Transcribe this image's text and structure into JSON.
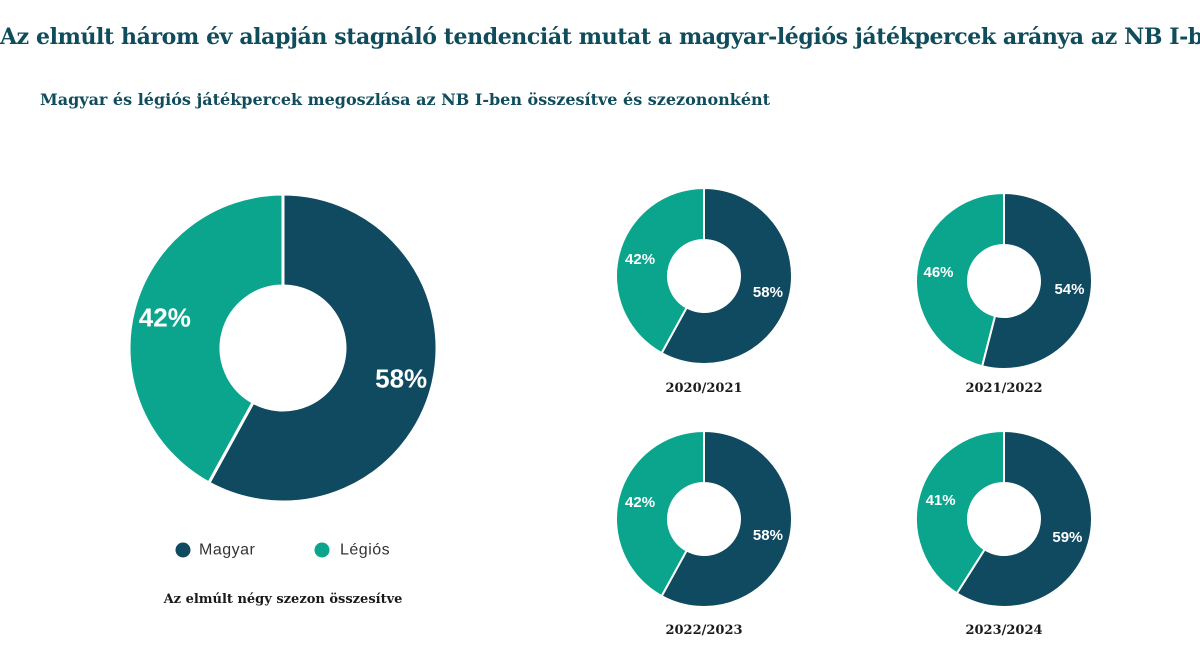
{
  "title": "Az elmúlt három év alapján stagnáló tendenciát mutat a magyar-légiós játékpercek aránya az NB I-ben",
  "subtitle": "Magyar és légiós játékpercek megoszlása az NB I-ben összesítve és szezononként",
  "colors": {
    "magyar": "#0f4a60",
    "legios": "#0aa58c"
  },
  "chart_data": [
    {
      "type": "pie",
      "caption": "Az elmúlt négy szezon összesítve",
      "labels": [
        "Magyar",
        "Légiós"
      ],
      "values": [
        58,
        42
      ]
    },
    {
      "type": "pie",
      "caption": "2020/2021",
      "labels": [
        "Magyar",
        "Légiós"
      ],
      "values": [
        58,
        42
      ]
    },
    {
      "type": "pie",
      "caption": "2021/2022",
      "labels": [
        "Magyar",
        "Légiós"
      ],
      "values": [
        54,
        46
      ]
    },
    {
      "type": "pie",
      "caption": "2022/2023",
      "labels": [
        "Magyar",
        "Légiós"
      ],
      "values": [
        58,
        42
      ]
    },
    {
      "type": "pie",
      "caption": "2023/2024",
      "labels": [
        "Magyar",
        "Légiós"
      ],
      "values": [
        59,
        41
      ]
    }
  ],
  "legend": {
    "items": [
      {
        "label": "Magyar",
        "color": "#0f4a60"
      },
      {
        "label": "Légiós",
        "color": "#0aa58c"
      }
    ],
    "position": "bottom"
  }
}
